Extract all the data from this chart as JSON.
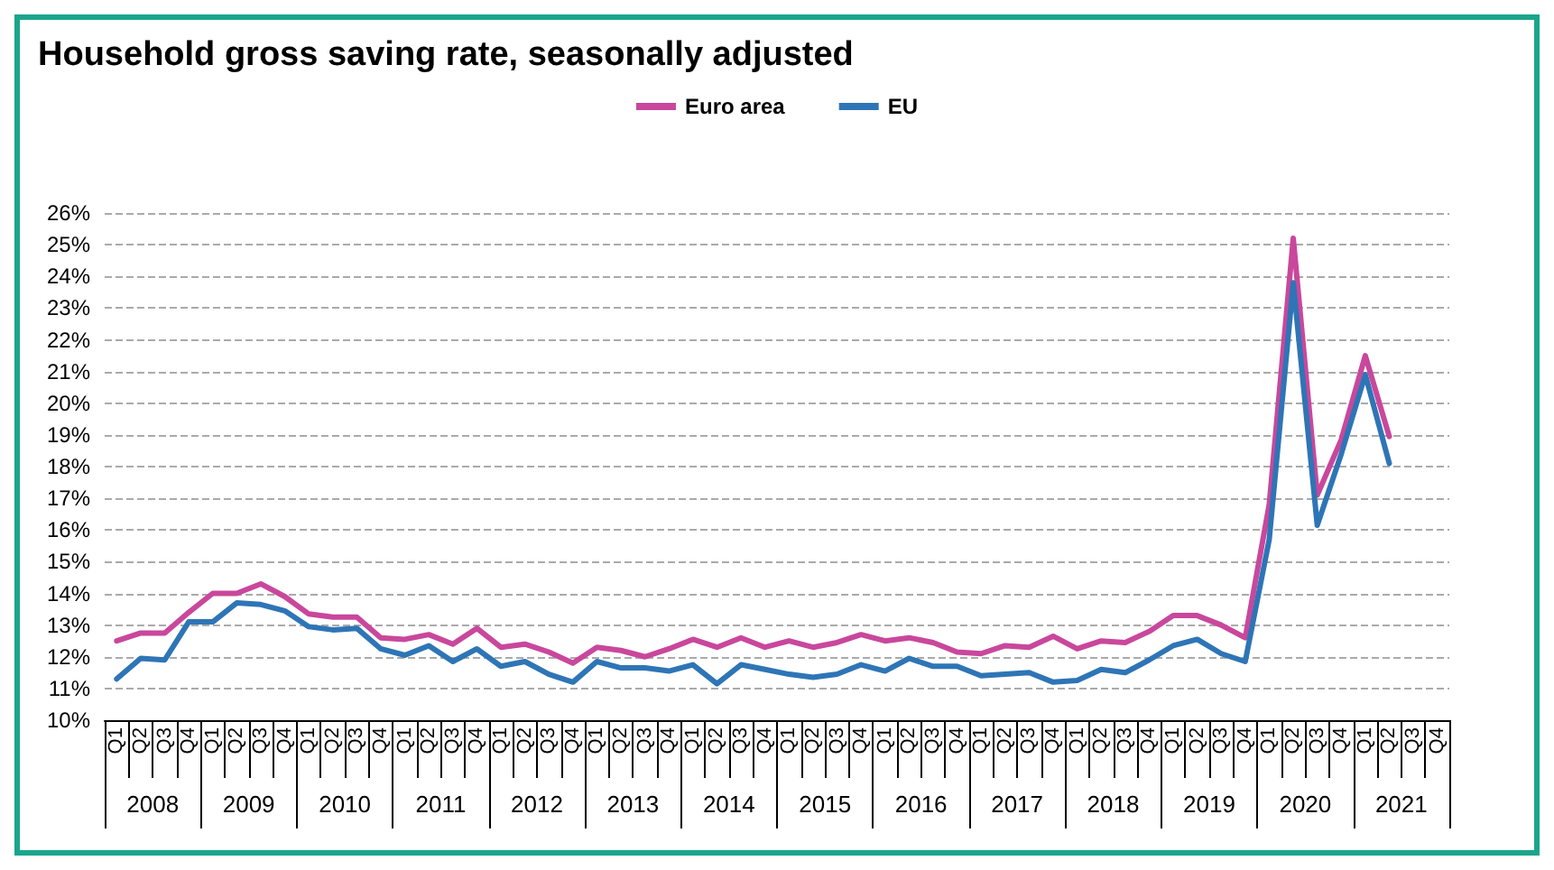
{
  "chart_data": {
    "type": "line",
    "title": "Household gross saving rate, seasonally adjusted",
    "categories": [
      "Q1",
      "Q2",
      "Q3",
      "Q4",
      "Q1",
      "Q2",
      "Q3",
      "Q4",
      "Q1",
      "Q2",
      "Q3",
      "Q4",
      "Q1",
      "Q2",
      "Q3",
      "Q4",
      "Q1",
      "Q2",
      "Q3",
      "Q4",
      "Q1",
      "Q2",
      "Q3",
      "Q4",
      "Q1",
      "Q2",
      "Q3",
      "Q4",
      "Q1",
      "Q2",
      "Q3",
      "Q4",
      "Q1",
      "Q2",
      "Q3",
      "Q4",
      "Q1",
      "Q2",
      "Q3",
      "Q4",
      "Q1",
      "Q2",
      "Q3",
      "Q4",
      "Q1",
      "Q2",
      "Q3",
      "Q4",
      "Q1",
      "Q2",
      "Q3",
      "Q4",
      "Q1",
      "Q2",
      "Q3",
      "Q4"
    ],
    "annotations": [
      "2008",
      "2009",
      "2010",
      "2011",
      "2012",
      "2013",
      "2014",
      "2015",
      "2016",
      "2017",
      "2018",
      "2019",
      "2020",
      "2021"
    ],
    "series": [
      {
        "name": "Euro area",
        "color": "#c9479c",
        "values": [
          12.5,
          12.75,
          12.75,
          13.4,
          14.0,
          14.0,
          14.3,
          13.9,
          13.35,
          13.25,
          13.25,
          12.6,
          12.55,
          12.7,
          12.4,
          12.9,
          12.3,
          12.4,
          12.15,
          11.8,
          12.3,
          12.2,
          12.0,
          12.25,
          12.55,
          12.3,
          12.6,
          12.3,
          12.5,
          12.3,
          12.45,
          12.7,
          12.5,
          12.6,
          12.45,
          12.15,
          12.1,
          12.35,
          12.3,
          12.65,
          12.25,
          12.5,
          12.45,
          12.8,
          13.3,
          13.3,
          13.0,
          12.6,
          16.8,
          25.2,
          17.1,
          18.85,
          21.5,
          18.95,
          null,
          null
        ]
      },
      {
        "name": "EU",
        "color": "#2e75b6",
        "values": [
          11.3,
          11.95,
          11.9,
          13.1,
          13.1,
          13.7,
          13.65,
          13.45,
          12.95,
          12.85,
          12.9,
          12.25,
          12.05,
          12.35,
          11.85,
          12.25,
          11.7,
          11.85,
          11.45,
          11.2,
          11.85,
          11.65,
          11.65,
          11.55,
          11.75,
          11.15,
          11.75,
          11.6,
          11.45,
          11.35,
          11.45,
          11.75,
          11.55,
          11.95,
          11.7,
          11.7,
          11.4,
          11.45,
          11.5,
          11.2,
          11.25,
          11.6,
          11.5,
          11.9,
          12.35,
          12.55,
          12.1,
          11.85,
          15.7,
          23.8,
          16.15,
          18.4,
          20.9,
          18.1,
          null,
          null
        ]
      }
    ],
    "ylim": [
      10,
      26
    ],
    "yticks": [
      {
        "value": 10,
        "label": "10%"
      },
      {
        "value": 11,
        "label": "11%"
      },
      {
        "value": 12,
        "label": "12%"
      },
      {
        "value": 13,
        "label": "13%"
      },
      {
        "value": 14,
        "label": "14%"
      },
      {
        "value": 15,
        "label": "15%"
      },
      {
        "value": 16,
        "label": "16%"
      },
      {
        "value": 17,
        "label": "17%"
      },
      {
        "value": 18,
        "label": "18%"
      },
      {
        "value": 19,
        "label": "19%"
      },
      {
        "value": 20,
        "label": "20%"
      },
      {
        "value": 21,
        "label": "21%"
      },
      {
        "value": 22,
        "label": "22%"
      },
      {
        "value": 23,
        "label": "23%"
      },
      {
        "value": 24,
        "label": "24%"
      },
      {
        "value": 25,
        "label": "25%"
      },
      {
        "value": 26,
        "label": "26%"
      }
    ],
    "grid": "y",
    "legend": "top",
    "marker": "none",
    "line_style": "solid"
  }
}
